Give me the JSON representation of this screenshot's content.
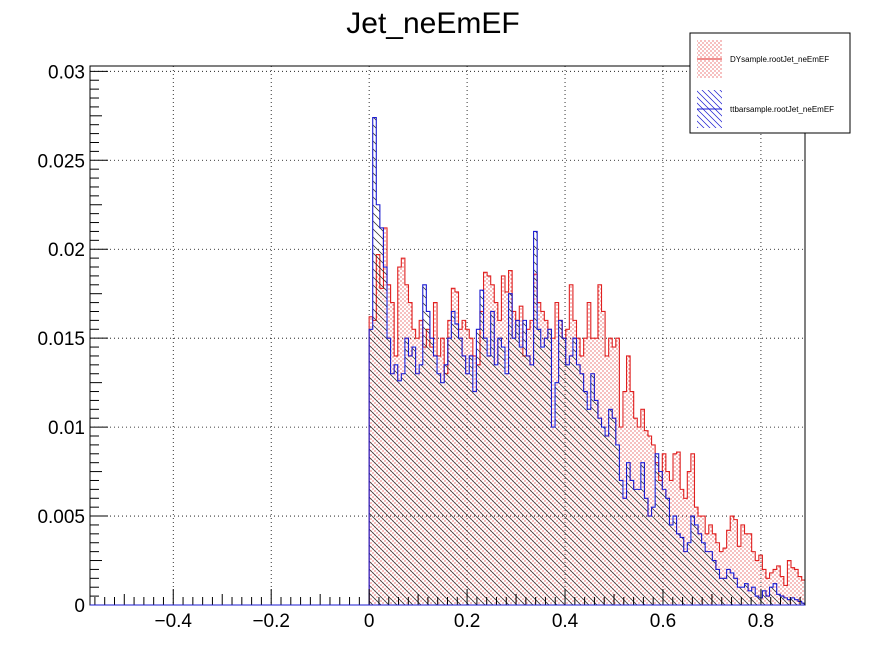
{
  "chart_data": {
    "type": "histogram",
    "title": "Jet_neEmEF",
    "xlabel": "",
    "ylabel": "",
    "xlim": [
      -0.57,
      0.89
    ],
    "ylim": [
      0,
      0.0303
    ],
    "x_ticks": [
      -0.4,
      -0.2,
      0,
      0.2,
      0.4,
      0.6,
      0.8
    ],
    "x_tick_labels": [
      "−0.4",
      "−0.2",
      "0",
      "0.2",
      "0.4",
      "0.6",
      "0.8"
    ],
    "y_ticks": [
      0,
      0.005,
      0.01,
      0.015,
      0.02,
      0.025,
      0.03
    ],
    "y_tick_labels": [
      "0",
      "0.005",
      "0.01",
      "0.015",
      "0.02",
      "0.025",
      "0.03"
    ],
    "grid": true,
    "legend_position": "top-right",
    "bin_start": 0,
    "bin_width": 0.0073,
    "series": [
      {
        "name": "DYsample.rootJet_neEmEF",
        "color": "#e02020",
        "fill": "dotted",
        "values": [
          0.0162,
          0.016,
          0.0197,
          0.0178,
          0.0212,
          0.018,
          0.017,
          0.014,
          0.019,
          0.0195,
          0.018,
          0.017,
          0.0155,
          0.015,
          0.016,
          0.0145,
          0.0155,
          0.0145,
          0.017,
          0.014,
          0.015,
          0.013,
          0.016,
          0.0178,
          0.0176,
          0.0155,
          0.016,
          0.0155,
          0.015,
          0.014,
          0.0135,
          0.0165,
          0.0187,
          0.0185,
          0.018,
          0.017,
          0.016,
          0.0185,
          0.0176,
          0.0188,
          0.0165,
          0.016,
          0.0168,
          0.014,
          0.0155,
          0.016,
          0.0186,
          0.017,
          0.0165,
          0.016,
          0.0155,
          0.015,
          0.017,
          0.016,
          0.015,
          0.0155,
          0.018,
          0.016,
          0.015,
          0.014,
          0.015,
          0.017,
          0.015,
          0.015,
          0.018,
          0.0165,
          0.014,
          0.015,
          0.0145,
          0.015,
          0.01,
          0.012,
          0.014,
          0.012,
          0.0105,
          0.01,
          0.011,
          0.0098,
          0.0095,
          0.009,
          0.008,
          0.007,
          0.0085,
          0.0075,
          0.007,
          0.0085,
          0.0086,
          0.0065,
          0.006,
          0.0075,
          0.0085,
          0.0055,
          0.005,
          0.005,
          0.004,
          0.0045,
          0.004,
          0.0035,
          0.003,
          0.0032,
          0.0042,
          0.005,
          0.0048,
          0.0033,
          0.0045,
          0.004,
          0.004,
          0.003,
          0.0025,
          0.0028,
          0.002,
          0.0015,
          0.0018,
          0.002,
          0.0022,
          0.0016,
          0.0011,
          0.0025,
          0.0021,
          0.002,
          0.0016,
          0.0014,
          0.0013,
          0.001,
          0.0012,
          0.0011,
          0.0009,
          0.0005,
          0.0007,
          0.001,
          0.0008,
          0.0006,
          0.0005,
          0.0004,
          0.0004,
          0.0003,
          0.0002,
          0.0002,
          0.0003,
          0.0002,
          0.0002,
          0.0001,
          0.0003,
          0.0002,
          0.0001,
          0.0002,
          0.0001,
          0.0005,
          0.0003,
          0.0002,
          0.0001,
          0.0001,
          0.0002,
          0.0001,
          0.0001,
          0.0001,
          0.0002,
          0.0001,
          0.0,
          0.0001,
          0.0001,
          0.0,
          0.0001,
          0.0,
          0.0,
          0.0,
          0.0001,
          0.0001,
          0.0,
          0.0,
          0.0,
          0.0,
          0.0001,
          0.0,
          0.0,
          0.0,
          0.0
        ]
      },
      {
        "name": "ttbarsample.rootJet_neEmEF",
        "color": "#1a1ad0",
        "fill": "hatched",
        "values": [
          0.0155,
          0.0274,
          0.0225,
          0.0212,
          0.019,
          0.015,
          0.013,
          0.0135,
          0.0126,
          0.013,
          0.015,
          0.014,
          0.0145,
          0.013,
          0.0135,
          0.018,
          0.0165,
          0.015,
          0.014,
          0.013,
          0.0125,
          0.0135,
          0.015,
          0.0165,
          0.0158,
          0.015,
          0.014,
          0.013,
          0.014,
          0.012,
          0.0155,
          0.0177,
          0.015,
          0.014,
          0.0165,
          0.0135,
          0.015,
          0.0145,
          0.013,
          0.0175,
          0.015,
          0.016,
          0.0145,
          0.016,
          0.014,
          0.0135,
          0.021,
          0.0155,
          0.0145,
          0.015,
          0.0155,
          0.01,
          0.0125,
          0.016,
          0.015,
          0.0135,
          0.014,
          0.015,
          0.0135,
          0.013,
          0.012,
          0.011,
          0.013,
          0.0115,
          0.0105,
          0.01,
          0.0095,
          0.011,
          0.0105,
          0.009,
          0.007,
          0.006,
          0.008,
          0.007,
          0.0065,
          0.0065,
          0.008,
          0.006,
          0.005,
          0.0055,
          0.0085,
          0.0075,
          0.0065,
          0.006,
          0.0045,
          0.005,
          0.004,
          0.0038,
          0.003,
          0.0035,
          0.005,
          0.0045,
          0.004,
          0.0035,
          0.003,
          0.003,
          0.0025,
          0.002,
          0.0015,
          0.0015,
          0.002,
          0.0018,
          0.0015,
          0.001,
          0.001,
          0.0012,
          0.0008,
          0.001,
          0.0005,
          0.0004,
          0.0008,
          0.0005,
          0.001,
          0.0012,
          0.0006,
          0.0005,
          0.0004,
          0.0003,
          0.0004,
          0.0003,
          0.0002,
          0.0001,
          0.0002,
          0.0003,
          0.0002,
          0.0001,
          0.0002,
          0.0001,
          0.0001,
          0.0002,
          0.0001,
          0.0001,
          0.0002,
          0.0001,
          0.0001,
          0.0,
          0.0001,
          0.0001,
          0.0,
          0.0001,
          0.0001,
          0.0,
          0.0001,
          0.0,
          0.0,
          0.0001,
          0.0,
          0.0,
          0.0,
          0.0001,
          0.0,
          0.0,
          0.0,
          0.0,
          0.0,
          0.0,
          0.0,
          0.0,
          0.0,
          0.0,
          0.0,
          0.0,
          0.0,
          0.0,
          0.0,
          0.0,
          0.0,
          0.0,
          0.0,
          0.0,
          0.0,
          0.0
        ]
      }
    ]
  }
}
